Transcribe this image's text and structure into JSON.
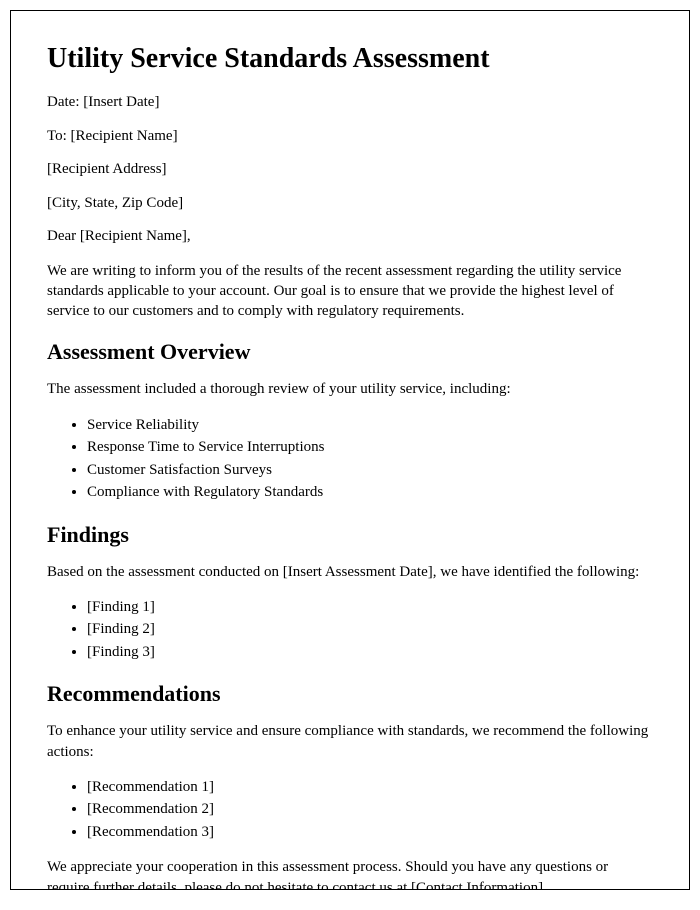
{
  "title": "Utility Service Standards Assessment",
  "header": {
    "date": "Date: [Insert Date]",
    "to": "To: [Recipient Name]",
    "address": "[Recipient Address]",
    "city": "[City, State, Zip Code]",
    "salutation": "Dear [Recipient Name],"
  },
  "intro": "We are writing to inform you of the results of the recent assessment regarding the utility service standards applicable to your account. Our goal is to ensure that we provide the highest level of service to our customers and to comply with regulatory requirements.",
  "overview": {
    "heading": "Assessment Overview",
    "lead": "The assessment included a thorough review of your utility service, including:",
    "items": [
      "Service Reliability",
      "Response Time to Service Interruptions",
      "Customer Satisfaction Surveys",
      "Compliance with Regulatory Standards"
    ]
  },
  "findings": {
    "heading": "Findings",
    "lead": "Based on the assessment conducted on [Insert Assessment Date], we have identified the following:",
    "items": [
      "[Finding 1]",
      "[Finding 2]",
      "[Finding 3]"
    ]
  },
  "recommendations": {
    "heading": "Recommendations",
    "lead": "To enhance your utility service and ensure compliance with standards, we recommend the following actions:",
    "items": [
      "[Recommendation 1]",
      "[Recommendation 2]",
      "[Recommendation 3]"
    ]
  },
  "closing": "We appreciate your cooperation in this assessment process. Should you have any questions or require further details, please do not hesitate to contact us at [Contact Information]."
}
